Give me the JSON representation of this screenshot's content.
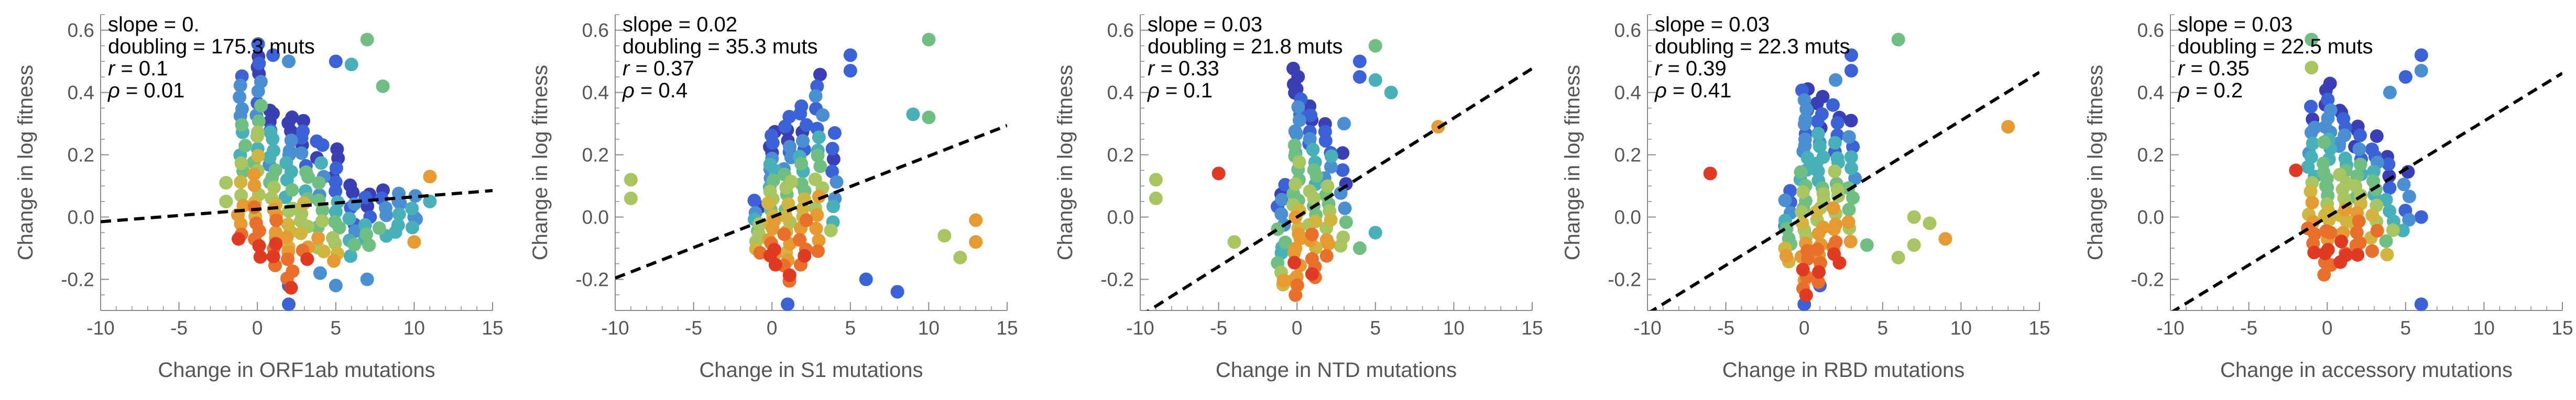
{
  "palette": [
    "#3a3fb5",
    "#3b62d6",
    "#4a8fd1",
    "#48b0b8",
    "#6fbf83",
    "#a7c560",
    "#d2b53e",
    "#e59a32",
    "#e8702b",
    "#e03a22"
  ],
  "chart_data": [
    {
      "type": "scatter",
      "xlabel": "Change in ORF1ab mutations",
      "ylabel": "Change in log fitness",
      "xlim": [
        -10,
        15
      ],
      "ylim": [
        -0.3,
        0.65
      ],
      "xticks": [
        -10,
        -5,
        0,
        5,
        10,
        15
      ],
      "yticks": [
        -0.2,
        0.0,
        0.2,
        0.4,
        0.6
      ],
      "ytick_labels": [
        "-0.2",
        "0.0",
        "0.2",
        "0.4",
        "0.6"
      ],
      "stats": [
        {
          "label": "slope",
          "value": "slope = 0."
        },
        {
          "label": "doubling",
          "value": "doubling = 175.3 muts"
        },
        {
          "label": "r",
          "value": " = 0.1"
        },
        {
          "label": "rho",
          "value": " = 0.01"
        }
      ],
      "fit_line": {
        "slope": 0.004,
        "intercept": 0.025,
        "x_range": [
          -10,
          15
        ]
      },
      "outliers": [
        {
          "x": -2,
          "y": 0.11,
          "c": 5
        },
        {
          "x": -2,
          "y": 0.05,
          "c": 5
        },
        {
          "x": 7,
          "y": 0.57,
          "c": 4
        },
        {
          "x": 8,
          "y": 0.42,
          "c": 4
        },
        {
          "x": 5,
          "y": 0.5,
          "c": 1
        },
        {
          "x": 6,
          "y": 0.49,
          "c": 3
        },
        {
          "x": 11,
          "y": 0.13,
          "c": 7
        },
        {
          "x": 10,
          "y": -0.08,
          "c": 7
        },
        {
          "x": 11,
          "y": 0.05,
          "c": 3
        },
        {
          "x": 9,
          "y": 0.05,
          "c": 2
        },
        {
          "x": 10,
          "y": 0.0,
          "c": 2
        },
        {
          "x": 2,
          "y": -0.28,
          "c": 1
        },
        {
          "x": 1,
          "y": 0.52,
          "c": 1
        },
        {
          "x": 2,
          "y": 0.5,
          "c": 2
        },
        {
          "x": 5,
          "y": -0.22,
          "c": 2
        },
        {
          "x": 7,
          "y": -0.2,
          "c": 2
        },
        {
          "x": 4,
          "y": -0.18,
          "c": 2
        },
        {
          "x": 2,
          "y": -0.22,
          "c": 1
        }
      ],
      "columns": [
        {
          "x": -1,
          "lo": -0.08,
          "hi": 0.45,
          "n": 18,
          "c0": 0,
          "c1": 9
        },
        {
          "x": 0,
          "lo": -0.12,
          "hi": 0.55,
          "n": 28,
          "c0": 0,
          "c1": 9
        },
        {
          "x": 1,
          "lo": -0.15,
          "hi": 0.35,
          "n": 24,
          "c0": 0,
          "c1": 9
        },
        {
          "x": 2,
          "lo": -0.22,
          "hi": 0.32,
          "n": 22,
          "c0": 0,
          "c1": 9
        },
        {
          "x": 3,
          "lo": -0.14,
          "hi": 0.3,
          "n": 18,
          "c0": 0,
          "c1": 8
        },
        {
          "x": 4,
          "lo": -0.12,
          "hi": 0.25,
          "n": 14,
          "c0": 0,
          "c1": 7
        },
        {
          "x": 5,
          "lo": -0.15,
          "hi": 0.22,
          "n": 14,
          "c0": 0,
          "c1": 6
        },
        {
          "x": 6,
          "lo": -0.12,
          "hi": 0.1,
          "n": 10,
          "c0": 0,
          "c1": 4
        },
        {
          "x": 7,
          "lo": -0.1,
          "hi": 0.08,
          "n": 8,
          "c0": 0,
          "c1": 4
        },
        {
          "x": 8,
          "lo": -0.06,
          "hi": 0.08,
          "n": 6,
          "c0": 1,
          "c1": 3
        },
        {
          "x": 9,
          "lo": -0.05,
          "hi": 0.07,
          "n": 5,
          "c0": 1,
          "c1": 3
        },
        {
          "x": 10,
          "lo": -0.04,
          "hi": 0.06,
          "n": 4,
          "c0": 1,
          "c1": 3
        }
      ]
    },
    {
      "type": "scatter",
      "xlabel": "Change in S1 mutations",
      "ylabel": "Change in log fitness",
      "xlim": [
        -10,
        15
      ],
      "ylim": [
        -0.3,
        0.65
      ],
      "xticks": [
        -10,
        -5,
        0,
        5,
        10,
        15
      ],
      "yticks": [
        -0.2,
        0.0,
        0.2,
        0.4,
        0.6
      ],
      "ytick_labels": [
        "-0.2",
        "0.0",
        "0.2",
        "0.4",
        "0.6"
      ],
      "stats": [
        {
          "label": "slope",
          "value": "slope = 0.02"
        },
        {
          "label": "doubling",
          "value": "doubling = 35.3 muts"
        },
        {
          "label": "r",
          "value": " = 0.37"
        },
        {
          "label": "rho",
          "value": " = 0.4"
        }
      ],
      "fit_line": {
        "slope": 0.0196,
        "intercept": 0.0,
        "x_range": [
          -10,
          15
        ]
      },
      "outliers": [
        {
          "x": -9,
          "y": 0.12,
          "c": 5
        },
        {
          "x": -9,
          "y": 0.06,
          "c": 5
        },
        {
          "x": 10,
          "y": 0.57,
          "c": 4
        },
        {
          "x": 10,
          "y": 0.32,
          "c": 4
        },
        {
          "x": 9,
          "y": 0.33,
          "c": 3
        },
        {
          "x": 13,
          "y": -0.01,
          "c": 7
        },
        {
          "x": 13,
          "y": -0.08,
          "c": 7
        },
        {
          "x": 11,
          "y": -0.06,
          "c": 5
        },
        {
          "x": 12,
          "y": -0.13,
          "c": 5
        },
        {
          "x": 5,
          "y": 0.52,
          "c": 1
        },
        {
          "x": 5,
          "y": 0.47,
          "c": 1
        },
        {
          "x": 4,
          "y": 0.27,
          "c": 1
        },
        {
          "x": 8,
          "y": -0.24,
          "c": 1
        },
        {
          "x": 6,
          "y": -0.2,
          "c": 1
        },
        {
          "x": 1,
          "y": -0.28,
          "c": 1
        }
      ],
      "columns": [
        {
          "x": -1,
          "lo": -0.12,
          "hi": 0.05,
          "n": 10,
          "c0": 0,
          "c1": 8
        },
        {
          "x": 0,
          "lo": -0.15,
          "hi": 0.28,
          "n": 26,
          "c0": 0,
          "c1": 9
        },
        {
          "x": 1,
          "lo": -0.2,
          "hi": 0.32,
          "n": 24,
          "c0": 0,
          "c1": 9
        },
        {
          "x": 2,
          "lo": -0.15,
          "hi": 0.35,
          "n": 20,
          "c0": 0,
          "c1": 9
        },
        {
          "x": 3,
          "lo": -0.1,
          "hi": 0.45,
          "n": 18,
          "c0": 0,
          "c1": 8
        },
        {
          "x": 4,
          "lo": -0.05,
          "hi": 0.22,
          "n": 8,
          "c0": 0,
          "c1": 5
        }
      ]
    },
    {
      "type": "scatter",
      "xlabel": "Change in NTD mutations",
      "ylabel": "Change in log fitness",
      "xlim": [
        -10,
        15
      ],
      "ylim": [
        -0.3,
        0.65
      ],
      "xticks": [
        -10,
        -5,
        0,
        5,
        10,
        15
      ],
      "yticks": [
        -0.2,
        0.0,
        0.2,
        0.4,
        0.6
      ],
      "ytick_labels": [
        "-0.2",
        "0.0",
        "0.2",
        "0.4",
        "0.6"
      ],
      "stats": [
        {
          "label": "slope",
          "value": "slope = 0.03"
        },
        {
          "label": "doubling",
          "value": "doubling = 21.8 muts"
        },
        {
          "label": "r",
          "value": " = 0.33"
        },
        {
          "label": "rho",
          "value": " = 0.1"
        }
      ],
      "fit_line": {
        "slope": 0.0318,
        "intercept": 0.0,
        "x_range": [
          -10,
          15
        ]
      },
      "outliers": [
        {
          "x": -9,
          "y": 0.12,
          "c": 5
        },
        {
          "x": -9,
          "y": 0.06,
          "c": 5
        },
        {
          "x": -5,
          "y": 0.14,
          "c": 9
        },
        {
          "x": -4,
          "y": -0.08,
          "c": 5
        },
        {
          "x": 9,
          "y": 0.29,
          "c": 7
        },
        {
          "x": 5,
          "y": 0.55,
          "c": 4
        },
        {
          "x": 4,
          "y": 0.5,
          "c": 1
        },
        {
          "x": 5,
          "y": 0.44,
          "c": 3
        },
        {
          "x": 4,
          "y": 0.45,
          "c": 1
        },
        {
          "x": 6,
          "y": 0.4,
          "c": 3
        },
        {
          "x": 4,
          "y": -0.1,
          "c": 4
        },
        {
          "x": 5,
          "y": -0.05,
          "c": 3
        },
        {
          "x": 3,
          "y": 0.3,
          "c": 2
        }
      ],
      "columns": [
        {
          "x": -1,
          "lo": -0.22,
          "hi": 0.1,
          "n": 14,
          "c0": 0,
          "c1": 6
        },
        {
          "x": 0,
          "lo": -0.25,
          "hi": 0.48,
          "n": 34,
          "c0": 0,
          "c1": 9
        },
        {
          "x": 1,
          "lo": -0.2,
          "hi": 0.35,
          "n": 24,
          "c0": 0,
          "c1": 9
        },
        {
          "x": 2,
          "lo": -0.12,
          "hi": 0.3,
          "n": 16,
          "c0": 0,
          "c1": 8
        },
        {
          "x": 3,
          "lo": -0.1,
          "hi": 0.2,
          "n": 8,
          "c0": 0,
          "c1": 5
        }
      ]
    },
    {
      "type": "scatter",
      "xlabel": "Change in RBD mutations",
      "ylabel": "Change in log fitness",
      "xlim": [
        -10,
        15
      ],
      "ylim": [
        -0.3,
        0.65
      ],
      "xticks": [
        -10,
        -5,
        0,
        5,
        10,
        15
      ],
      "yticks": [
        -0.2,
        0.0,
        0.2,
        0.4,
        0.6
      ],
      "ytick_labels": [
        "-0.2",
        "0.0",
        "0.2",
        "0.4",
        "0.6"
      ],
      "stats": [
        {
          "label": "slope",
          "value": "slope = 0.03"
        },
        {
          "label": "doubling",
          "value": "doubling = 22.3 muts"
        },
        {
          "label": "r",
          "value": " = 0.39"
        },
        {
          "label": "rho",
          "value": " = 0.41"
        }
      ],
      "fit_line": {
        "slope": 0.031,
        "intercept": 0.0,
        "x_range": [
          -10,
          15
        ]
      },
      "outliers": [
        {
          "x": -6,
          "y": 0.14,
          "c": 9
        },
        {
          "x": 13,
          "y": 0.29,
          "c": 7
        },
        {
          "x": 6,
          "y": 0.57,
          "c": 4
        },
        {
          "x": 7,
          "y": 0.0,
          "c": 5
        },
        {
          "x": 8,
          "y": -0.02,
          "c": 5
        },
        {
          "x": 9,
          "y": -0.07,
          "c": 7
        },
        {
          "x": 7,
          "y": -0.09,
          "c": 5
        },
        {
          "x": 6,
          "y": -0.13,
          "c": 5
        },
        {
          "x": 4,
          "y": -0.09,
          "c": 4
        },
        {
          "x": 3,
          "y": 0.52,
          "c": 1
        },
        {
          "x": 3,
          "y": 0.47,
          "c": 1
        },
        {
          "x": 2,
          "y": 0.44,
          "c": 2
        },
        {
          "x": 0,
          "y": -0.28,
          "c": 1
        },
        {
          "x": 1,
          "y": -0.22,
          "c": 1
        }
      ],
      "columns": [
        {
          "x": -1,
          "lo": -0.15,
          "hi": 0.08,
          "n": 12,
          "c0": 0,
          "c1": 7
        },
        {
          "x": 0,
          "lo": -0.25,
          "hi": 0.42,
          "n": 32,
          "c0": 0,
          "c1": 9
        },
        {
          "x": 1,
          "lo": -0.2,
          "hi": 0.38,
          "n": 26,
          "c0": 0,
          "c1": 9
        },
        {
          "x": 2,
          "lo": -0.15,
          "hi": 0.35,
          "n": 20,
          "c0": 0,
          "c1": 9
        },
        {
          "x": 3,
          "lo": -0.08,
          "hi": 0.3,
          "n": 12,
          "c0": 0,
          "c1": 7
        }
      ]
    },
    {
      "type": "scatter",
      "xlabel": "Change in accessory mutations",
      "ylabel": "Change in log fitness",
      "xlim": [
        -10,
        15
      ],
      "ylim": [
        -0.3,
        0.65
      ],
      "xticks": [
        -10,
        -5,
        0,
        5,
        10,
        15
      ],
      "yticks": [
        -0.2,
        0.0,
        0.2,
        0.4,
        0.6
      ],
      "ytick_labels": [
        "-0.2",
        "0.0",
        "0.2",
        "0.4",
        "0.6"
      ],
      "stats": [
        {
          "label": "slope",
          "value": "slope = 0.03"
        },
        {
          "label": "doubling",
          "value": "doubling = 22.5 muts"
        },
        {
          "label": "r",
          "value": " = 0.35"
        },
        {
          "label": "rho",
          "value": " = 0.2"
        }
      ],
      "fit_line": {
        "slope": 0.0308,
        "intercept": 0.0,
        "x_range": [
          -10,
          15
        ]
      },
      "outliers": [
        {
          "x": -1,
          "y": 0.57,
          "c": 4
        },
        {
          "x": 6,
          "y": 0.52,
          "c": 1
        },
        {
          "x": 6,
          "y": 0.47,
          "c": 2
        },
        {
          "x": 6,
          "y": 0.0,
          "c": 1
        },
        {
          "x": 6,
          "y": -0.28,
          "c": 1
        },
        {
          "x": 5,
          "y": 0.45,
          "c": 1
        },
        {
          "x": 4,
          "y": 0.4,
          "c": 2
        },
        {
          "x": -1,
          "y": 0.48,
          "c": 5
        },
        {
          "x": -2,
          "y": 0.15,
          "c": 9
        }
      ],
      "columns": [
        {
          "x": -1,
          "lo": -0.12,
          "hi": 0.35,
          "n": 18,
          "c0": 0,
          "c1": 9
        },
        {
          "x": 0,
          "lo": -0.18,
          "hi": 0.42,
          "n": 30,
          "c0": 0,
          "c1": 9
        },
        {
          "x": 1,
          "lo": -0.15,
          "hi": 0.35,
          "n": 24,
          "c0": 0,
          "c1": 9
        },
        {
          "x": 2,
          "lo": -0.12,
          "hi": 0.3,
          "n": 20,
          "c0": 0,
          "c1": 9
        },
        {
          "x": 3,
          "lo": -0.1,
          "hi": 0.25,
          "n": 14,
          "c0": 0,
          "c1": 8
        },
        {
          "x": 4,
          "lo": -0.12,
          "hi": 0.2,
          "n": 10,
          "c0": 0,
          "c1": 6
        },
        {
          "x": 5,
          "lo": -0.05,
          "hi": 0.15,
          "n": 6,
          "c0": 0,
          "c1": 4
        }
      ]
    }
  ]
}
